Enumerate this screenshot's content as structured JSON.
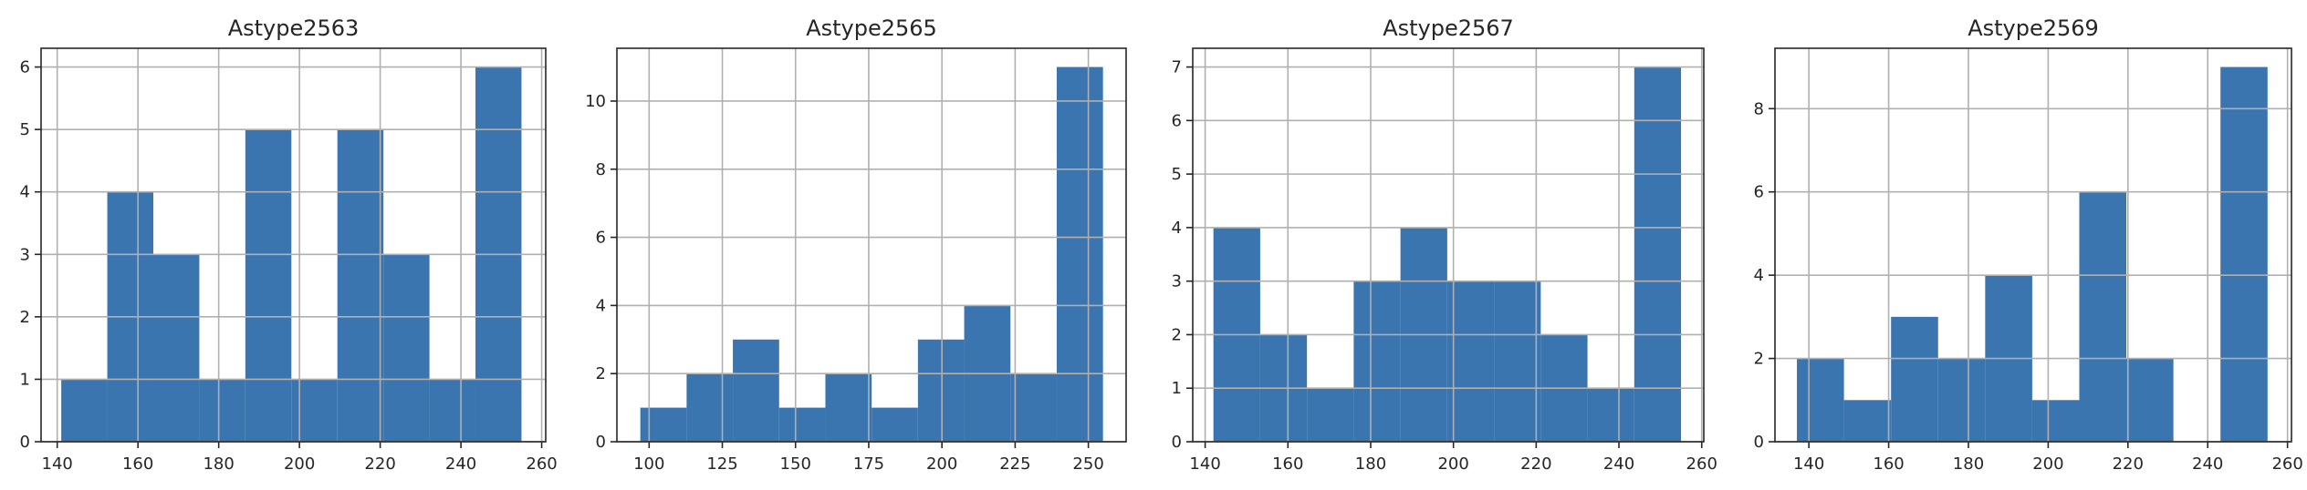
{
  "chart_data": [
    {
      "type": "bar",
      "title": "Astype2563",
      "bar_color": "#3a75b0",
      "bins": [
        [
          141,
          152.4
        ],
        [
          152.4,
          163.8
        ],
        [
          163.8,
          175.2
        ],
        [
          175.2,
          186.6
        ],
        [
          186.6,
          198
        ],
        [
          198,
          209.4
        ],
        [
          209.4,
          220.8
        ],
        [
          220.8,
          232.2
        ],
        [
          232.2,
          243.6
        ],
        [
          243.6,
          255
        ]
      ],
      "values": [
        1,
        4,
        3,
        1,
        5,
        1,
        5,
        3,
        1,
        6
      ],
      "xlim": [
        136,
        261
      ],
      "ylim": [
        0,
        6.3
      ],
      "xticks": [
        140,
        160,
        180,
        200,
        220,
        240,
        260
      ],
      "yticks": [
        0,
        1,
        2,
        3,
        4,
        5,
        6
      ],
      "grid": true
    },
    {
      "type": "bar",
      "title": "Astype2565",
      "bar_color": "#3a75b0",
      "bins": [
        [
          97,
          112.8
        ],
        [
          112.8,
          128.6
        ],
        [
          128.6,
          144.4
        ],
        [
          144.4,
          160.2
        ],
        [
          160.2,
          176
        ],
        [
          176,
          191.8
        ],
        [
          191.8,
          207.6
        ],
        [
          207.6,
          223.4
        ],
        [
          223.4,
          239.2
        ],
        [
          239.2,
          255
        ]
      ],
      "values": [
        1,
        2,
        3,
        1,
        2,
        1,
        3,
        4,
        2,
        11
      ],
      "xlim": [
        89,
        262.9
      ],
      "ylim": [
        0,
        11.55
      ],
      "xticks": [
        100,
        125,
        150,
        175,
        200,
        225,
        250
      ],
      "yticks": [
        0,
        2,
        4,
        6,
        8,
        10
      ],
      "grid": true
    },
    {
      "type": "bar",
      "title": "Astype2567",
      "bar_color": "#3a75b0",
      "bins": [
        [
          142,
          153.3
        ],
        [
          153.3,
          164.6
        ],
        [
          164.6,
          175.9
        ],
        [
          175.9,
          187.2
        ],
        [
          187.2,
          198.5
        ],
        [
          198.5,
          209.8
        ],
        [
          209.8,
          221.1
        ],
        [
          221.1,
          232.4
        ],
        [
          232.4,
          243.7
        ],
        [
          243.7,
          255
        ]
      ],
      "values": [
        4,
        2,
        1,
        3,
        4,
        3,
        3,
        2,
        1,
        7
      ],
      "xlim": [
        137,
        260.5
      ],
      "ylim": [
        0,
        7.35
      ],
      "xticks": [
        140,
        160,
        180,
        200,
        220,
        240,
        260
      ],
      "yticks": [
        0,
        1,
        2,
        3,
        4,
        5,
        6,
        7
      ],
      "grid": true
    },
    {
      "type": "bar",
      "title": "Astype2569",
      "bar_color": "#3a75b0",
      "bins": [
        [
          137,
          148.8
        ],
        [
          148.8,
          160.6
        ],
        [
          160.6,
          172.4
        ],
        [
          172.4,
          184.2
        ],
        [
          184.2,
          196
        ],
        [
          196,
          207.8
        ],
        [
          207.8,
          219.6
        ],
        [
          219.6,
          231.4
        ],
        [
          231.4,
          243.2
        ],
        [
          243.2,
          255
        ]
      ],
      "values": [
        2,
        1,
        3,
        2,
        4,
        1,
        6,
        2,
        0,
        9
      ],
      "xlim": [
        131.5,
        261
      ],
      "ylim": [
        0,
        9.45
      ],
      "xticks": [
        140,
        160,
        180,
        200,
        220,
        240,
        260
      ],
      "yticks": [
        0,
        2,
        4,
        6,
        8
      ],
      "grid": true
    }
  ]
}
